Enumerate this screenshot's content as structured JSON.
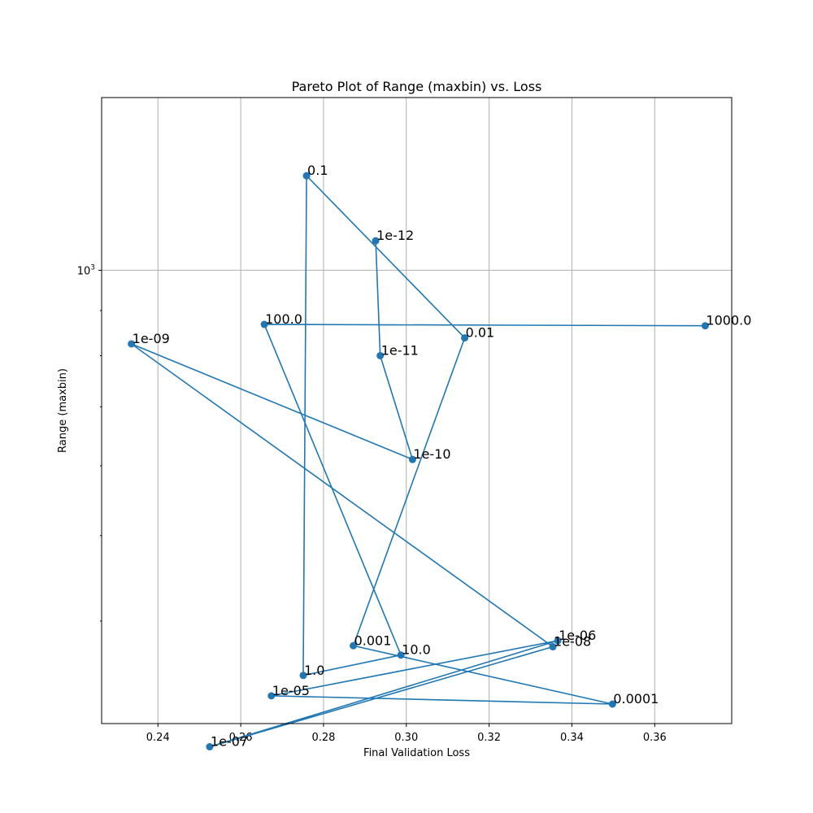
{
  "chart_data": {
    "type": "line",
    "title": "Pareto Plot of Range (maxbin) vs. Loss",
    "xlabel": "Final Validation Loss",
    "ylabel": "Range (maxbin)",
    "xlim": [
      0.2264,
      0.3786
    ],
    "ylim": [
      306,
      1570
    ],
    "yscale": "log",
    "grid": true,
    "x_ticks": [
      0.24,
      0.26,
      0.28,
      0.3,
      0.32,
      0.34,
      0.36
    ],
    "x_tick_labels": [
      "0.24",
      "0.26",
      "0.28",
      "0.30",
      "0.32",
      "0.34",
      "0.36"
    ],
    "y_major_ticks": [
      1000
    ],
    "y_major_tick_label": "10",
    "y_major_tick_exponent": "3",
    "y_minor_ticks": [
      400,
      500,
      600,
      700,
      800,
      900
    ],
    "color": "#1f77b4",
    "points": [
      {
        "label": "1e-12",
        "x": 0.2926,
        "y": 1080
      },
      {
        "label": "1e-11",
        "x": 0.2937,
        "y": 800
      },
      {
        "label": "1e-10",
        "x": 0.3015,
        "y": 610
      },
      {
        "label": "1e-09",
        "x": 0.2336,
        "y": 825
      },
      {
        "label": "1e-08",
        "x": 0.3354,
        "y": 374
      },
      {
        "label": "1e-07",
        "x": 0.2525,
        "y": 288
      },
      {
        "label": "1e-06",
        "x": 0.3366,
        "y": 380
      },
      {
        "label": "1e-05",
        "x": 0.2674,
        "y": 329
      },
      {
        "label": "0.0001",
        "x": 0.3498,
        "y": 322
      },
      {
        "label": "0.001",
        "x": 0.2872,
        "y": 375
      },
      {
        "label": "0.01",
        "x": 0.3141,
        "y": 838
      },
      {
        "label": "0.1",
        "x": 0.2759,
        "y": 1280
      },
      {
        "label": "1.0",
        "x": 0.2751,
        "y": 347
      },
      {
        "label": "10.0",
        "x": 0.2987,
        "y": 366
      },
      {
        "label": "100.0",
        "x": 0.2657,
        "y": 868
      },
      {
        "label": "1000.0",
        "x": 0.3722,
        "y": 865
      }
    ]
  }
}
